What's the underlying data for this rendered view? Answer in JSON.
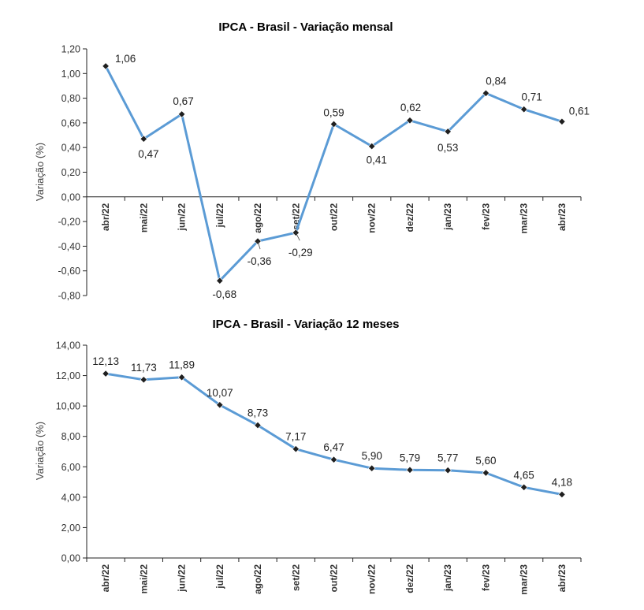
{
  "chart_data": [
    {
      "type": "line",
      "title": "IPCA - Brasil - Variação mensal",
      "xlabel": "",
      "ylabel": "Variação (%)",
      "categories": [
        "abr/22",
        "mai/22",
        "jun/22",
        "jul/22",
        "ago/22",
        "set/22",
        "out/22",
        "nov/22",
        "dez/22",
        "jan/23",
        "fev/23",
        "mar/23",
        "abr/23"
      ],
      "values": [
        1.06,
        0.47,
        0.67,
        -0.68,
        -0.36,
        -0.29,
        0.59,
        0.41,
        0.62,
        0.53,
        0.84,
        0.71,
        0.61
      ],
      "data_labels": [
        "1,06",
        "0,47",
        "0,67",
        "-0,68",
        "-0,36",
        "-0,29",
        "0,59",
        "0,41",
        "0,62",
        "0,53",
        "0,84",
        "0,71",
        "0,61"
      ],
      "ylim": [
        -0.8,
        1.2
      ],
      "yticks": [
        1.2,
        1.0,
        0.8,
        0.6,
        0.4,
        0.2,
        0.0,
        -0.2,
        -0.4,
        -0.6,
        -0.8
      ],
      "ytick_labels": [
        "1,20",
        "1,00",
        "0,80",
        "0,60",
        "0,40",
        "0,20",
        "0,00",
        "-0,20",
        "-0,40",
        "-0,60",
        "-0,80"
      ],
      "grid": false,
      "line_color": "#5b9bd5"
    },
    {
      "type": "line",
      "title": "IPCA - Brasil - Variação 12 meses",
      "xlabel": "",
      "ylabel": "Variação (%)",
      "categories": [
        "abr/22",
        "mai/22",
        "jun/22",
        "jul/22",
        "ago/22",
        "set/22",
        "out/22",
        "nov/22",
        "dez/22",
        "jan/23",
        "fev/23",
        "mar/23",
        "abr/23"
      ],
      "values": [
        12.13,
        11.73,
        11.89,
        10.07,
        8.73,
        7.17,
        6.47,
        5.9,
        5.79,
        5.77,
        5.6,
        4.65,
        4.18
      ],
      "data_labels": [
        "12,13",
        "11,73",
        "11,89",
        "10,07",
        "8,73",
        "7,17",
        "6,47",
        "5,90",
        "5,79",
        "5,77",
        "5,60",
        "4,65",
        "4,18"
      ],
      "ylim": [
        0,
        14
      ],
      "yticks": [
        14,
        12,
        10,
        8,
        6,
        4,
        2,
        0
      ],
      "ytick_labels": [
        "14,00",
        "12,00",
        "10,00",
        "8,00",
        "6,00",
        "4,00",
        "2,00",
        "0,00"
      ],
      "grid": false,
      "line_color": "#5b9bd5"
    }
  ]
}
